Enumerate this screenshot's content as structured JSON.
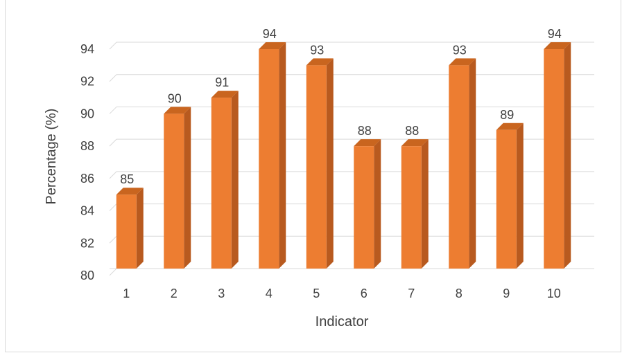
{
  "chart_data": {
    "type": "bar",
    "style": "3d-column",
    "categories": [
      "1",
      "2",
      "3",
      "4",
      "5",
      "6",
      "7",
      "8",
      "9",
      "10"
    ],
    "values": [
      85,
      90,
      91,
      94,
      93,
      88,
      88,
      93,
      89,
      94
    ],
    "data_labels": [
      "85",
      "90",
      "91",
      "94",
      "93",
      "88",
      "88",
      "93",
      "89",
      "94"
    ],
    "title": "",
    "xlabel": "Indicator",
    "ylabel": "Percentage (%)",
    "ylim": [
      80,
      94
    ],
    "yticks": [
      "80",
      "82",
      "84",
      "86",
      "88",
      "90",
      "92",
      "94"
    ],
    "grid": true,
    "legend": "none",
    "colors": {
      "bar_front": "#ED7D31",
      "bar_side": "#B85A1F",
      "bar_top": "#C9651F",
      "grid": "#d9d9d9",
      "text": "#404040"
    }
  }
}
